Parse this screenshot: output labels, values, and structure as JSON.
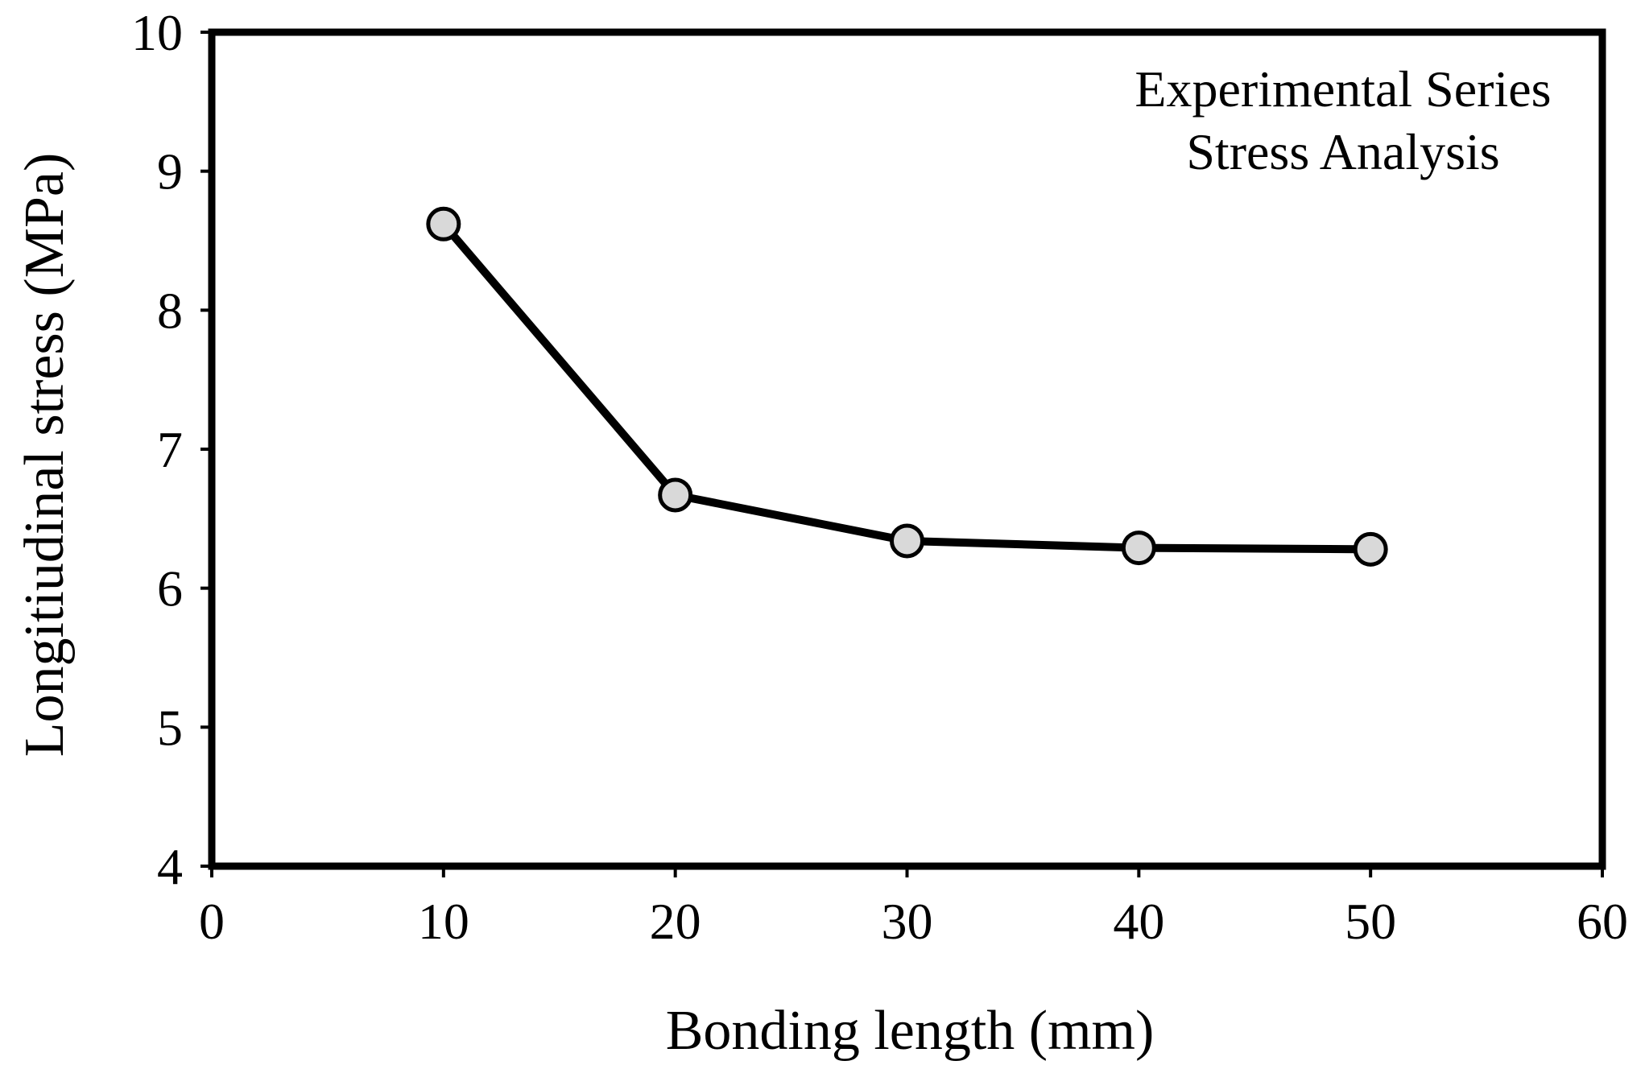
{
  "chart_data": {
    "type": "line",
    "title": "",
    "xlabel": "Bonding length (mm)",
    "ylabel": "Longitiudinal stress (MPa)",
    "xlim": [
      0,
      60
    ],
    "ylim": [
      4,
      10
    ],
    "xticks": [
      0,
      10,
      20,
      30,
      40,
      50,
      60
    ],
    "yticks": [
      4,
      5,
      6,
      7,
      8,
      9,
      10
    ],
    "grid": false,
    "annotation_lines": [
      "Experimental Series",
      "Stress Analysis"
    ],
    "annotation_placement": "top-right",
    "series": [
      {
        "name": "Experimental Series",
        "x": [
          10,
          20,
          30,
          40,
          50
        ],
        "y": [
          8.62,
          6.67,
          6.34,
          6.29,
          6.28
        ]
      }
    ]
  },
  "colors": {
    "line": "#000000",
    "marker_fill": "#d9d9d9",
    "marker_stroke": "#000000"
  }
}
